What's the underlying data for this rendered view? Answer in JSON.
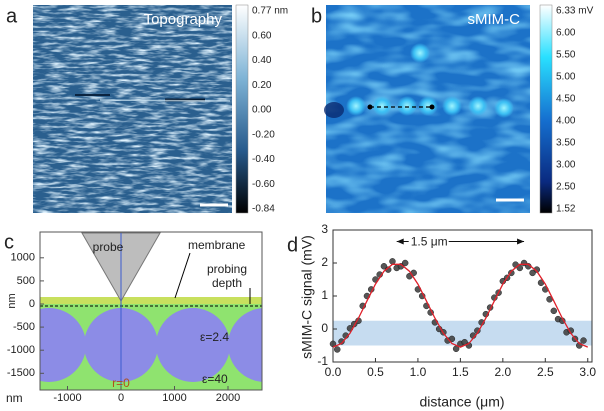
{
  "panels": {
    "a": {
      "label": "a",
      "title": "Topography",
      "colorbar": [
        "0.77 nm",
        "0.60",
        "0.40",
        "0.20",
        "0.00",
        "-0.20",
        "-0.40",
        "-0.60",
        "-0.84"
      ]
    },
    "b": {
      "label": "b",
      "title": "sMIM-C",
      "colorbar": [
        "6.33 mV",
        "6.00",
        "5.50",
        "5.00",
        "4.50",
        "4.00",
        "3.50",
        "3.00",
        "2.50",
        "1.52"
      ]
    },
    "c": {
      "label": "c",
      "yticks": [
        1000,
        500,
        0,
        -500,
        -1000,
        -1500
      ],
      "xticks": [
        -1000,
        0,
        1000,
        2000
      ],
      "x_unit": "nm",
      "y_unit": "nm",
      "probe": "probe",
      "membrane": "membrane",
      "probing": "probing",
      "depth": "depth",
      "eps_inner": "ε=2.4",
      "eps_outer": "ε=40",
      "r0": "r=0"
    },
    "d": {
      "label": "d"
    }
  },
  "chart_data": {
    "type": "scatter",
    "xlabel": "distance (μm)",
    "ylabel": "sMIM-C signal (mV)",
    "xlim": [
      0,
      3.05
    ],
    "ylim": [
      -1,
      3
    ],
    "xticks": [
      {
        "value": 0,
        "label": "0.0"
      },
      0.5,
      {
        "value": 1,
        "label": "1.0"
      },
      1.5,
      {
        "value": 2,
        "label": "2.0"
      },
      2.5,
      {
        "value": 3,
        "label": "3.0"
      }
    ],
    "yticks": [
      -1,
      0,
      1,
      2,
      3
    ],
    "band_ylim": [
      -0.5,
      0.25
    ],
    "band_color": "#c6dcf0",
    "annotation": {
      "text": "1.5 μm",
      "arrow_x": [
        0.75,
        2.25
      ],
      "arrow_y": 2.65
    },
    "series": [
      {
        "kind": "scatter",
        "color": "#444444",
        "x": [
          0,
          0.05,
          0.1,
          0.15,
          0.2,
          0.25,
          0.3,
          0.35,
          0.4,
          0.45,
          0.5,
          0.55,
          0.6,
          0.65,
          0.7,
          0.75,
          0.8,
          0.85,
          0.9,
          0.95,
          1,
          1.05,
          1.1,
          1.15,
          1.2,
          1.25,
          1.3,
          1.35,
          1.4,
          1.45,
          1.5,
          1.55,
          1.6,
          1.65,
          1.7,
          1.75,
          1.8,
          1.85,
          1.9,
          1.95,
          2,
          2.05,
          2.1,
          2.15,
          2.2,
          2.25,
          2.3,
          2.35,
          2.4,
          2.45,
          2.5,
          2.55,
          2.6,
          2.65,
          2.7,
          2.75,
          2.8,
          2.85,
          2.9,
          2.95
        ],
        "values": [
          -0.45,
          -0.62,
          -0.38,
          -0.2,
          0.02,
          0.15,
          0.25,
          0.7,
          1.0,
          1.2,
          1.5,
          1.65,
          1.9,
          1.8,
          2.05,
          1.85,
          1.9,
          2.0,
          1.6,
          1.7,
          1.2,
          1.0,
          0.7,
          0.5,
          0.2,
          0.0,
          -0.1,
          -0.35,
          -0.3,
          -0.6,
          -0.45,
          -0.4,
          -0.5,
          -0.2,
          -0.05,
          0.2,
          0.45,
          0.65,
          0.95,
          1.1,
          1.45,
          1.55,
          1.7,
          1.95,
          1.85,
          2.0,
          1.9,
          1.7,
          1.8,
          1.4,
          1.2,
          0.9,
          0.55,
          0.3,
          0.25,
          -0.1,
          -0.05,
          -0.3,
          -0.5,
          -0.35
        ]
      },
      {
        "kind": "line",
        "color": "#e0202a",
        "x": [
          0,
          0.1,
          0.2,
          0.3,
          0.4,
          0.5,
          0.6,
          0.7,
          0.8,
          0.9,
          1.0,
          1.1,
          1.2,
          1.3,
          1.4,
          1.5,
          1.6,
          1.7,
          1.8,
          1.9,
          2.0,
          2.1,
          2.2,
          2.3,
          2.4,
          2.5,
          2.6,
          2.7,
          2.8,
          2.9,
          3.0
        ],
        "values": [
          -0.55,
          -0.44,
          -0.13,
          0.33,
          0.85,
          1.36,
          1.75,
          1.96,
          1.96,
          1.75,
          1.36,
          0.85,
          0.33,
          -0.13,
          -0.44,
          -0.55,
          -0.44,
          -0.13,
          0.33,
          0.85,
          1.36,
          1.75,
          1.96,
          1.96,
          1.75,
          1.36,
          0.85,
          0.33,
          -0.13,
          -0.44,
          -0.55
        ]
      }
    ]
  }
}
